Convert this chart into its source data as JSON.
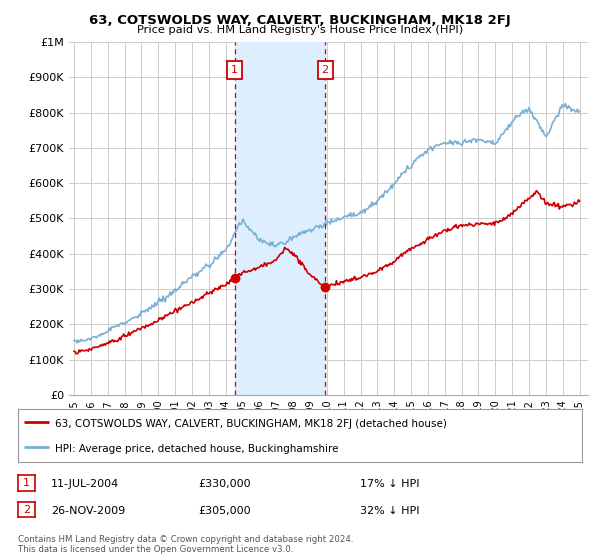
{
  "title": "63, COTSWOLDS WAY, CALVERT, BUCKINGHAM, MK18 2FJ",
  "subtitle": "Price paid vs. HM Land Registry's House Price Index (HPI)",
  "background_color": "#ffffff",
  "grid_color": "#cccccc",
  "sale1": {
    "date_label": "11-JUL-2004",
    "price": 330000,
    "hpi_pct": "17% ↓ HPI",
    "x_year": 2004.53
  },
  "sale2": {
    "date_label": "26-NOV-2009",
    "price": 305000,
    "hpi_pct": "32% ↓ HPI",
    "x_year": 2009.9
  },
  "sale_color": "#cc0000",
  "vline_color": "#cc0000",
  "shade_color": "#ddeeff",
  "hpi_color": "#7ab0d4",
  "legend_label_sale": "63, COTSWOLDS WAY, CALVERT, BUCKINGHAM, MK18 2FJ (detached house)",
  "legend_label_hpi": "HPI: Average price, detached house, Buckinghamshire",
  "footnote": "Contains HM Land Registry data © Crown copyright and database right 2024.\nThis data is licensed under the Open Government Licence v3.0.",
  "ylim": [
    0,
    1000000
  ],
  "yticks": [
    0,
    100000,
    200000,
    300000,
    400000,
    500000,
    600000,
    700000,
    800000,
    900000,
    1000000
  ],
  "ytick_labels": [
    "£0",
    "£100K",
    "£200K",
    "£300K",
    "£400K",
    "£500K",
    "£600K",
    "£700K",
    "£800K",
    "£900K",
    "£1M"
  ],
  "xlim_start": 1994.7,
  "xlim_end": 2025.5,
  "xtick_years": [
    1995,
    1996,
    1997,
    1998,
    1999,
    2000,
    2001,
    2002,
    2003,
    2004,
    2005,
    2006,
    2007,
    2008,
    2009,
    2010,
    2011,
    2012,
    2013,
    2014,
    2015,
    2016,
    2017,
    2018,
    2019,
    2020,
    2021,
    2022,
    2023,
    2024,
    2025
  ]
}
